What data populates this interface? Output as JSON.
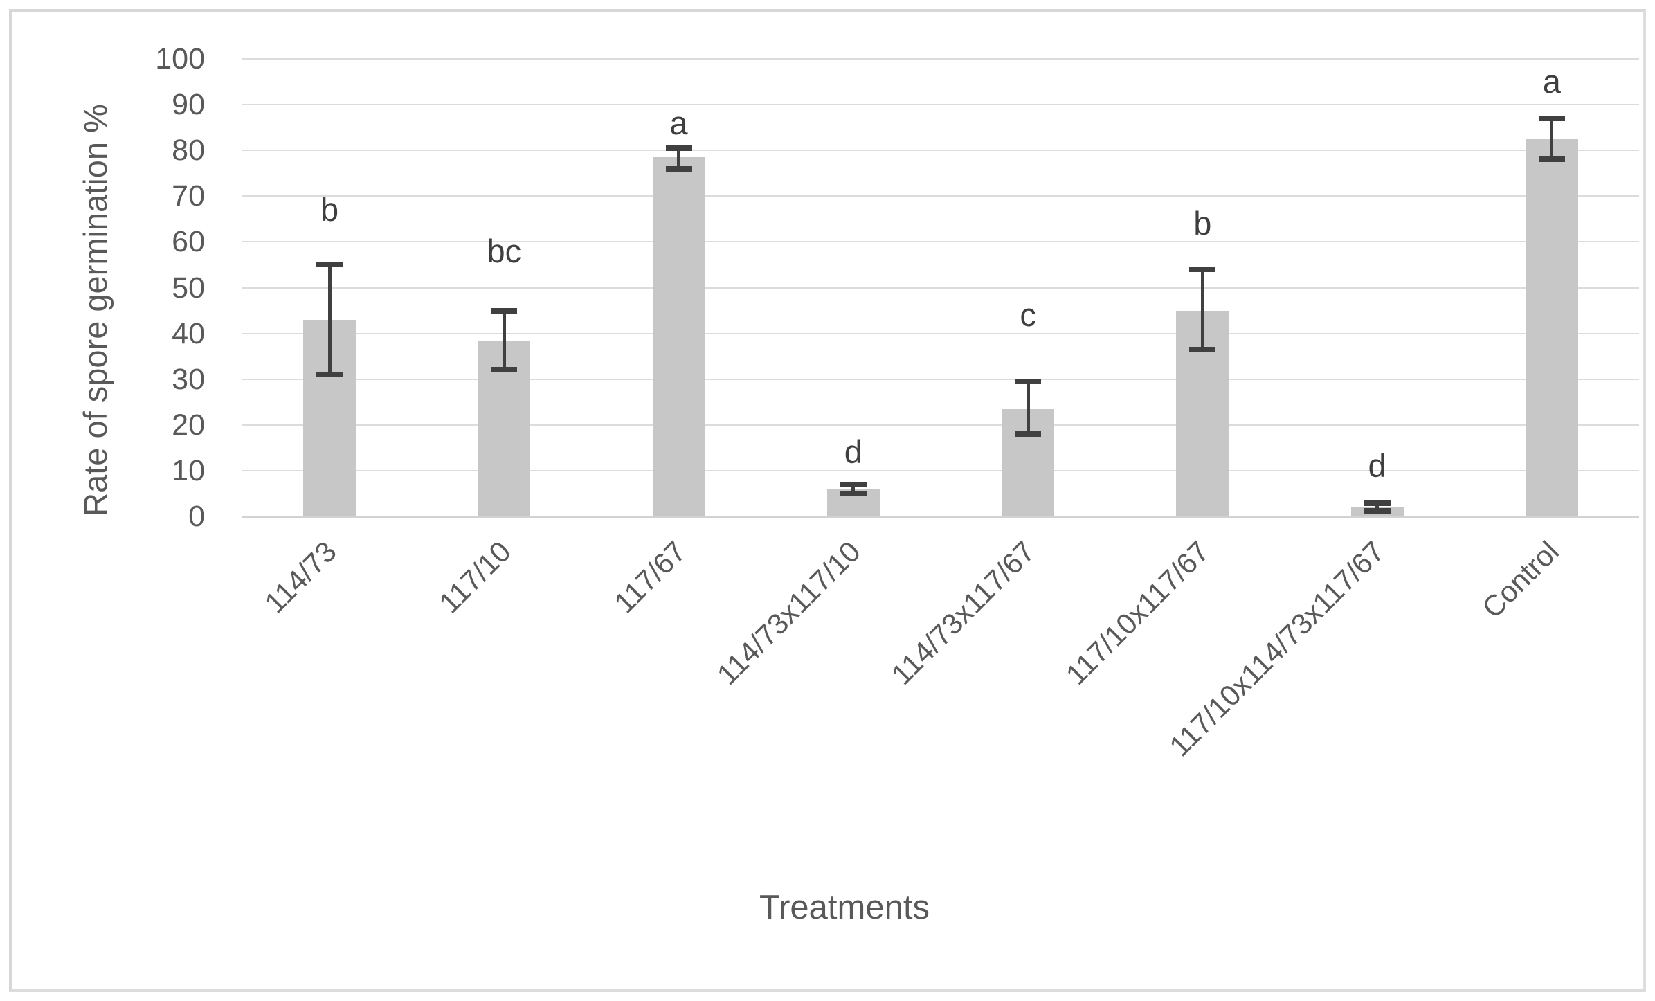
{
  "figure": {
    "type": "excel-style bar chart with error bars",
    "background": "#ffffff",
    "border_color": "#d7d7d7"
  },
  "chart_data": {
    "type": "bar",
    "title": "",
    "xlabel": "Treatments",
    "ylabel": "Rate of spore germination %",
    "ylim": [
      0,
      100
    ],
    "yticks": [
      0,
      10,
      20,
      30,
      40,
      50,
      60,
      70,
      80,
      90,
      100
    ],
    "grid": true,
    "legend": false,
    "bar_color": "#c7c7c7",
    "error_bar_color": "#404040",
    "gridline_color": "#dcdcdc",
    "text_color": "#595959",
    "categories": [
      "114/73",
      "117/10",
      "117/67",
      "114/73x117/10",
      "114/73x117/67",
      "117/10x117/67",
      "117/10x114/73x117/67",
      "Control"
    ],
    "values": [
      43,
      38.5,
      78.5,
      6,
      23.5,
      45,
      2,
      82.5
    ],
    "error_low": [
      31,
      32,
      76,
      5,
      18,
      36.5,
      1.2,
      78
    ],
    "error_high": [
      55,
      45,
      80.5,
      7,
      29.5,
      54,
      2.8,
      87
    ],
    "sig_letters": [
      "b",
      "bc",
      "a",
      "d",
      "c",
      "b",
      "d",
      "a"
    ],
    "sig_letter_y": [
      67,
      58,
      86,
      14,
      44,
      64,
      11,
      95
    ]
  }
}
